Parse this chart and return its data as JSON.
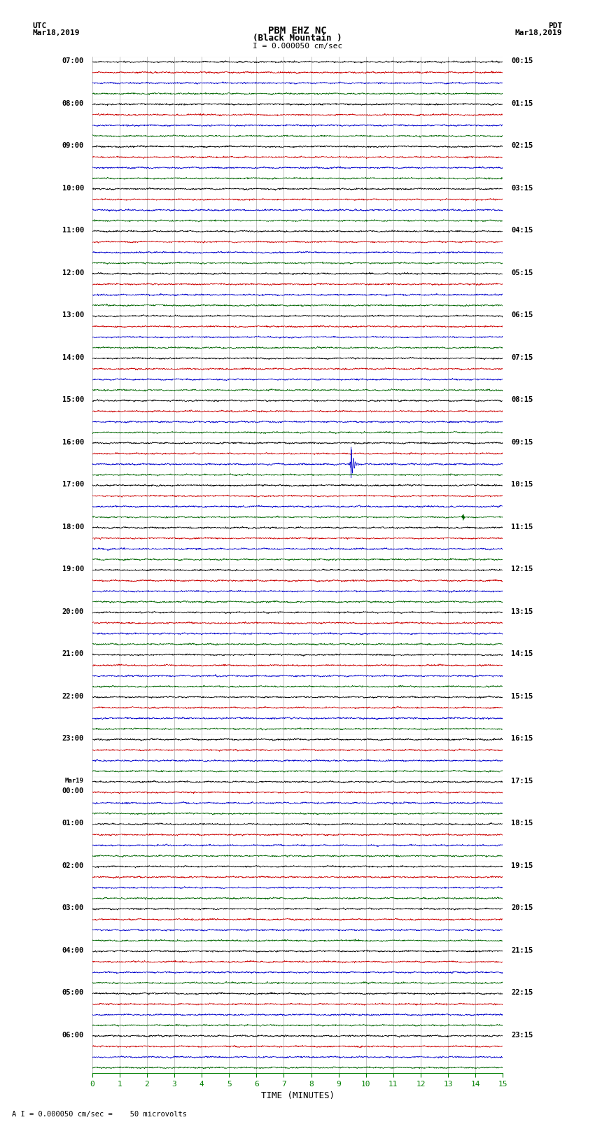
{
  "title_line1": "PBM EHZ NC",
  "title_line2": "(Black Mountain )",
  "scale_label": "I = 0.000050 cm/sec",
  "left_header": "UTC\nMar18,2019",
  "right_header": "PDT\nMar18,2019",
  "bottom_label": "TIME (MINUTES)",
  "bottom_note": "A I = 0.000050 cm/sec =    50 microvolts",
  "num_rows": 24,
  "display_minutes": 15,
  "left_times": [
    "07:00",
    "08:00",
    "09:00",
    "10:00",
    "11:00",
    "12:00",
    "13:00",
    "14:00",
    "15:00",
    "16:00",
    "17:00",
    "18:00",
    "19:00",
    "20:00",
    "21:00",
    "22:00",
    "23:00",
    "Mar19\n00:00",
    "01:00",
    "02:00",
    "03:00",
    "04:00",
    "05:00",
    "06:00"
  ],
  "right_times": [
    "00:15",
    "01:15",
    "02:15",
    "03:15",
    "04:15",
    "05:15",
    "06:15",
    "07:15",
    "08:15",
    "09:15",
    "10:15",
    "11:15",
    "12:15",
    "13:15",
    "14:15",
    "15:15",
    "16:15",
    "17:15",
    "18:15",
    "19:15",
    "20:15",
    "21:15",
    "22:15",
    "23:15"
  ],
  "colors": {
    "black": "#000000",
    "red": "#cc0000",
    "blue": "#0000cc",
    "green": "#006600",
    "background": "#ffffff",
    "grid": "#888888"
  },
  "noise_amp": 0.3,
  "event_row": 9,
  "event_minute": 9.45,
  "event_amplitude": 3.5,
  "event_row2": 10,
  "event_minute2": 13.55,
  "event_amplitude2": 0.8,
  "tick_color": "#008000",
  "xlabel_ticks": [
    0,
    1,
    2,
    3,
    4,
    5,
    6,
    7,
    8,
    9,
    10,
    11,
    12,
    13,
    14,
    15
  ],
  "samples_per_row": 4500,
  "trace_offsets": [
    0.12,
    0.37,
    0.62,
    0.87
  ]
}
